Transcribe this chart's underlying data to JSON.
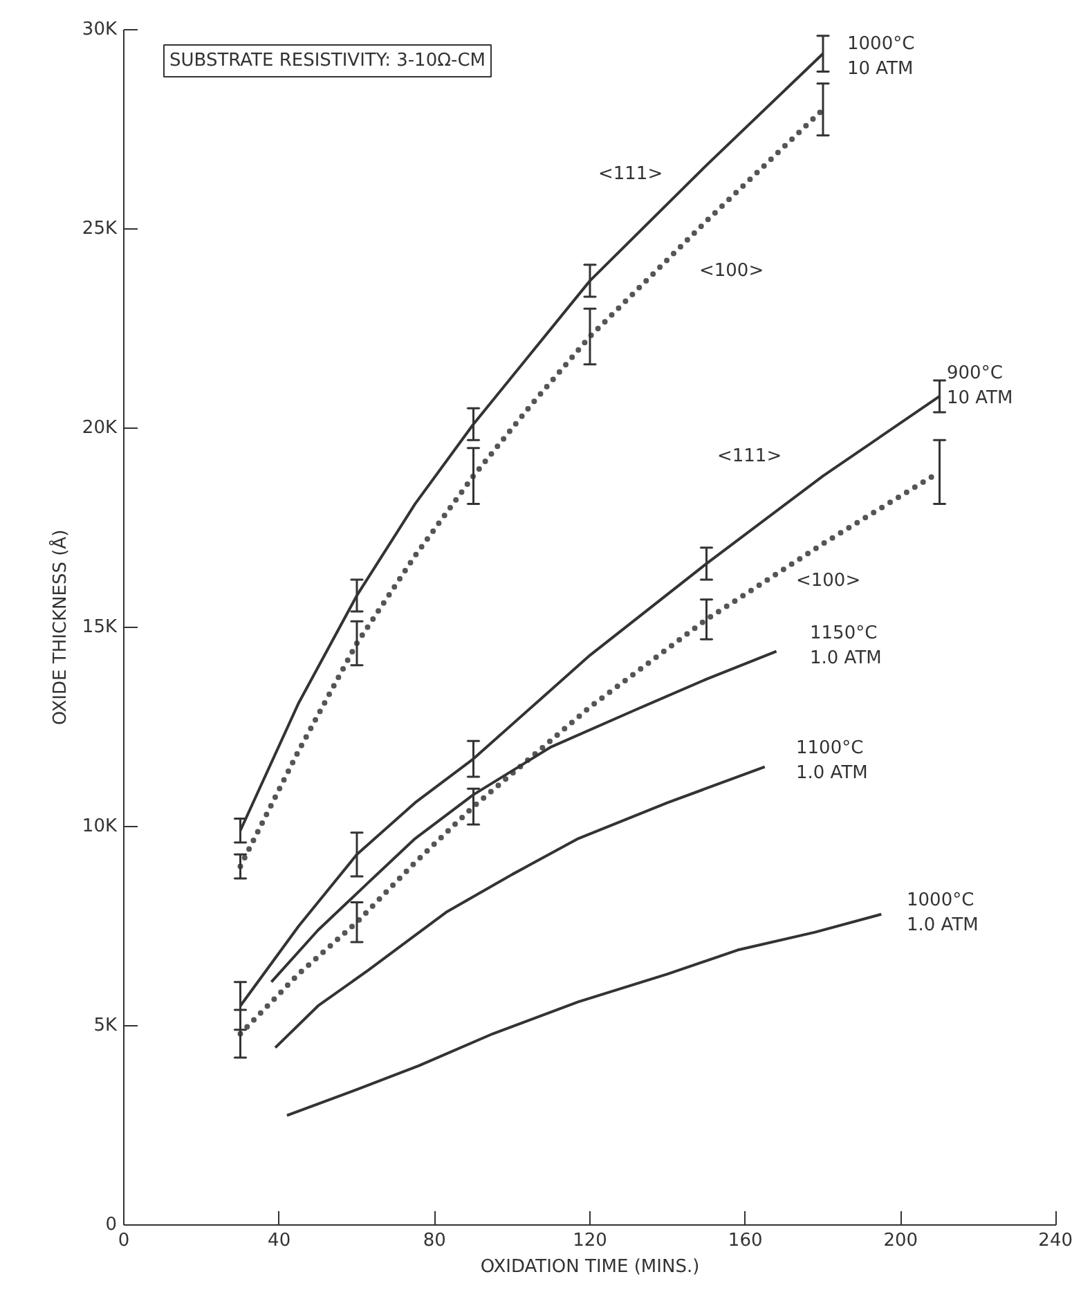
{
  "chart_data": {
    "type": "line",
    "xlabel": "OXIDATION TIME (MINS.)",
    "ylabel": "OXIDE THICKNESS (Å)",
    "xlim": [
      0,
      240
    ],
    "xticks": [
      0,
      40,
      80,
      120,
      160,
      200,
      240
    ],
    "ylim": [
      0,
      30
    ],
    "yticks": [
      0,
      {
        "value": 5,
        "label": "5K"
      },
      {
        "value": 10,
        "label": "10K"
      },
      {
        "value": 15,
        "label": "15K"
      },
      {
        "value": 20,
        "label": "20K"
      },
      {
        "value": 25,
        "label": "25K"
      },
      {
        "value": 30,
        "label": "30K"
      }
    ],
    "grid": false,
    "marker": "none",
    "series": [
      {
        "color": "#333333",
        "line_style": "solid",
        "x": [
          30,
          45,
          60,
          75,
          90,
          105,
          120,
          150,
          180
        ],
        "values": [
          9.9,
          13.1,
          15.8,
          18.1,
          20.1,
          21.9,
          23.7,
          26.6,
          29.4
        ],
        "errors": [
          0.3,
          null,
          0.4,
          null,
          0.4,
          null,
          0.4,
          null,
          0.45
        ]
      },
      {
        "color": "#555555",
        "line_style": "dotted",
        "x": [
          30,
          45,
          60,
          75,
          90,
          105,
          120,
          150,
          180
        ],
        "values": [
          9.0,
          11.9,
          14.6,
          16.8,
          18.8,
          20.6,
          22.3,
          25.2,
          28.0
        ],
        "errors": [
          0.3,
          null,
          0.55,
          null,
          0.7,
          null,
          0.7,
          null,
          0.65
        ]
      },
      {
        "color": "#333333",
        "line_style": "solid",
        "x": [
          30,
          45,
          60,
          75,
          90,
          120,
          150,
          180,
          210
        ],
        "values": [
          5.5,
          7.5,
          9.3,
          10.6,
          11.7,
          14.3,
          16.6,
          18.8,
          20.8
        ],
        "errors": [
          0.6,
          null,
          0.55,
          null,
          0.45,
          null,
          0.4,
          null,
          0.4
        ]
      },
      {
        "color": "#555555",
        "line_style": "dotted",
        "x": [
          30,
          45,
          60,
          75,
          90,
          120,
          150,
          180,
          210
        ],
        "values": [
          4.8,
          6.3,
          7.6,
          9.1,
          10.5,
          13.0,
          15.2,
          17.1,
          18.9
        ],
        "errors": [
          0.6,
          null,
          0.5,
          null,
          0.45,
          null,
          0.5,
          null,
          0.8
        ]
      },
      {
        "color": "#333333",
        "line_style": "solid",
        "x": [
          38,
          50,
          63,
          75,
          90,
          110,
          131,
          150,
          168
        ],
        "values": [
          6.1,
          7.4,
          8.6,
          9.7,
          10.8,
          12.0,
          12.9,
          13.7,
          14.4
        ]
      },
      {
        "color": "#333333",
        "line_style": "solid",
        "x": [
          39,
          50,
          63,
          74,
          83,
          100,
          117,
          140,
          165
        ],
        "values": [
          4.45,
          5.5,
          6.4,
          7.2,
          7.85,
          8.8,
          9.7,
          10.6,
          11.5
        ]
      },
      {
        "color": "#333333",
        "line_style": "solid",
        "x": [
          42,
          60,
          76,
          95,
          117,
          140,
          158,
          178,
          195
        ],
        "values": [
          2.75,
          3.4,
          4.0,
          4.8,
          5.6,
          6.3,
          6.9,
          7.35,
          7.8
        ]
      }
    ],
    "annotations": [
      "SUBSTRATE RESISTIVITY: 3-10Ω-CM",
      "1000°C\n10 ATM",
      "<111>",
      "<100>",
      "<111>",
      "900°C\n10 ATM",
      "<100>",
      "1150°C\n1.0 ATM",
      "1100°C\n1.0 ATM",
      "1000°C\n1.0 ATM"
    ]
  }
}
